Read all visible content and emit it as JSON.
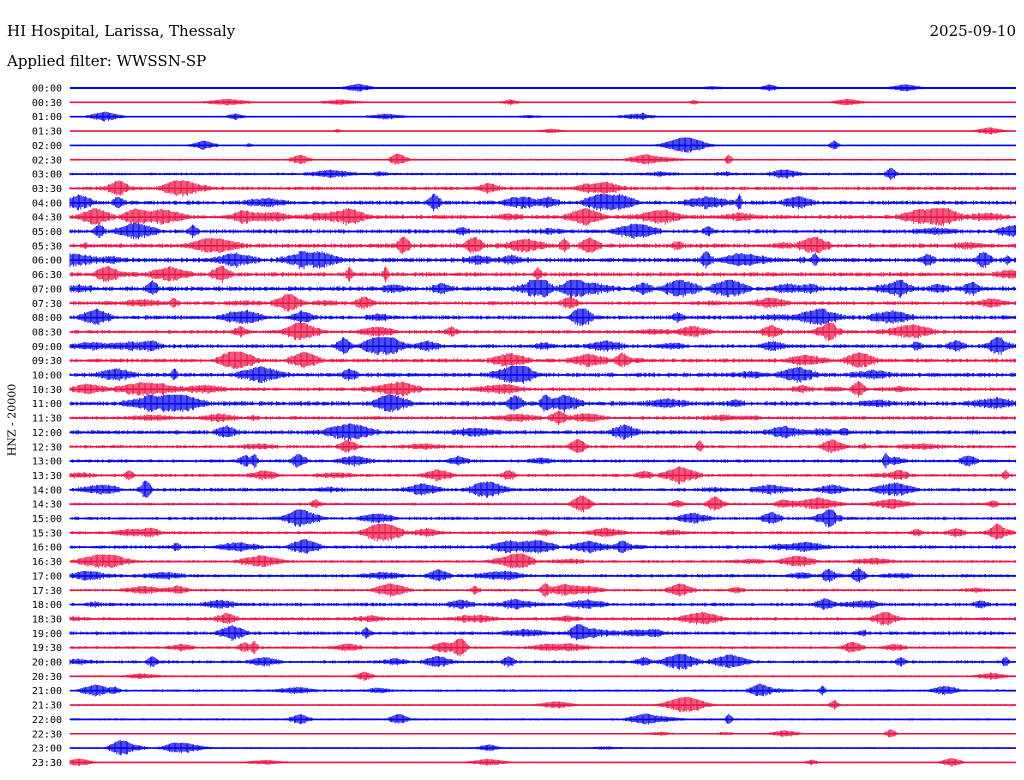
{
  "header": {
    "station": "HI Hospital, Larissa, Thessaly",
    "date": "2025-09-10",
    "filter": "Applied filter: WWSSN-SP"
  },
  "chart_data": {
    "type": "line",
    "title": "HI Hospital, Larissa, Thessaly",
    "subtitle": "Applied filter: WWSSN-SP",
    "ylabel": "HNZ - 20000",
    "xlabel": "",
    "grid": false,
    "legend": "none",
    "trace_colors": [
      "#0000ee",
      "#ee1144"
    ],
    "categories": [
      "00:00",
      "00:30",
      "01:00",
      "01:30",
      "02:00",
      "02:30",
      "03:00",
      "03:30",
      "04:00",
      "04:30",
      "05:00",
      "05:30",
      "06:00",
      "06:30",
      "07:00",
      "07:30",
      "08:00",
      "08:30",
      "09:00",
      "09:30",
      "10:00",
      "10:30",
      "11:00",
      "11:30",
      "12:00",
      "12:30",
      "13:00",
      "13:30",
      "14:00",
      "14:30",
      "15:00",
      "15:30",
      "16:00",
      "16:30",
      "17:00",
      "17:30",
      "18:00",
      "18:30",
      "19:00",
      "19:30",
      "20:00",
      "20:30",
      "21:00",
      "21:30",
      "22:00",
      "22:30",
      "23:00",
      "23:30"
    ],
    "noise_level": [
      0.6,
      0.8,
      1.0,
      0.7,
      1.2,
      1.4,
      2.0,
      2.6,
      3.0,
      3.2,
      3.0,
      3.2,
      3.4,
      3.2,
      3.4,
      2.8,
      3.0,
      2.6,
      2.8,
      3.0,
      3.2,
      2.6,
      3.4,
      2.6,
      3.0,
      2.4,
      2.4,
      2.2,
      2.6,
      2.0,
      2.4,
      2.2,
      2.6,
      2.0,
      2.4,
      2.0,
      2.6,
      2.4,
      2.6,
      2.0,
      2.2,
      1.4,
      1.8,
      1.2,
      1.6,
      1.0,
      1.2,
      0.8
    ]
  }
}
